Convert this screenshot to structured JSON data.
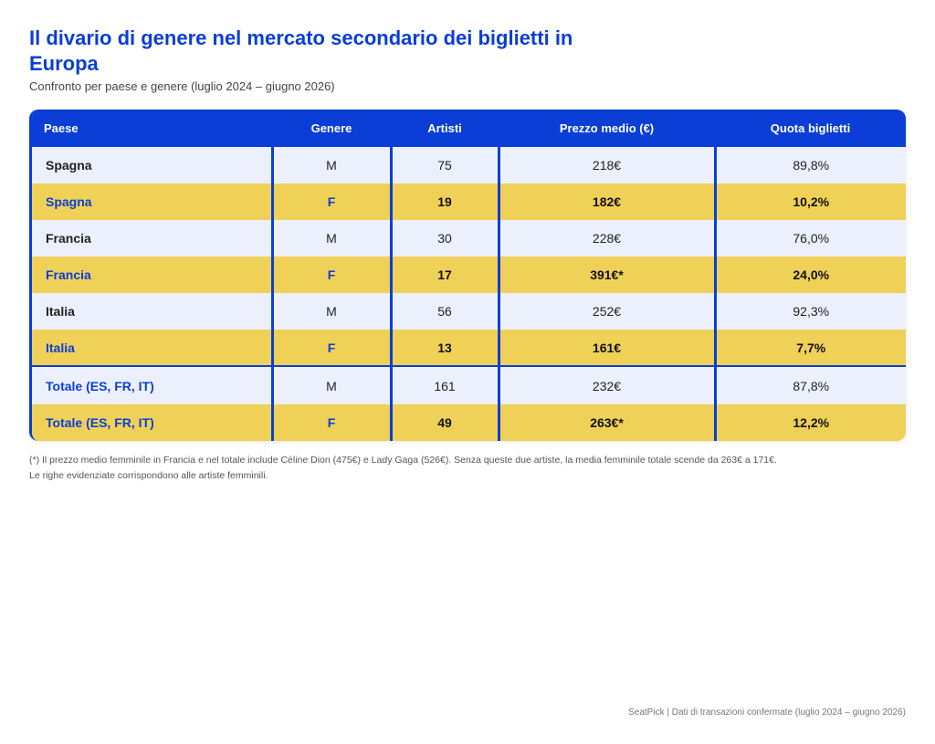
{
  "title": "Il divario di genere nel mercato secondario dei biglietti in Europa",
  "subtitle": "Confronto per paese e genere (luglio 2024 – giugno 2026)",
  "chart_data": {
    "type": "table",
    "columns": [
      "Paese",
      "Genere",
      "Artisti",
      "Prezzo medio (€)",
      "Quota biglietti"
    ],
    "rows": [
      {
        "country": "Spagna",
        "gender": "M",
        "artists": "75",
        "price": "218€",
        "share": "89,8%",
        "kind": "male"
      },
      {
        "country": "Spagna",
        "gender": "F",
        "artists": "19",
        "price": "182€",
        "share": "10,2%",
        "kind": "female"
      },
      {
        "country": "Francia",
        "gender": "M",
        "artists": "30",
        "price": "228€",
        "share": "76,0%",
        "kind": "male"
      },
      {
        "country": "Francia",
        "gender": "F",
        "artists": "17",
        "price": "391€*",
        "share": "24,0%",
        "kind": "female"
      },
      {
        "country": "Italia",
        "gender": "M",
        "artists": "56",
        "price": "252€",
        "share": "92,3%",
        "kind": "male"
      },
      {
        "country": "Italia",
        "gender": "F",
        "artists": "13",
        "price": "161€",
        "share": "7,7%",
        "kind": "female"
      },
      {
        "country": "Totale (ES, FR, IT)",
        "gender": "M",
        "artists": "161",
        "price": "232€",
        "share": "87,8%",
        "kind": "male",
        "total": true
      },
      {
        "country": "Totale (ES, FR, IT)",
        "gender": "F",
        "artists": "49",
        "price": "263€*",
        "share": "12,2%",
        "kind": "female",
        "total": true
      }
    ]
  },
  "footnotes": [
    "(*) Il prezzo medio femminile in Francia e nel totale include Céline Dion (475€) e Lady Gaga (526€). Senza queste due artiste, la media femminile totale scende da 263€ a 171€.",
    "Le righe evidenziate corrispondono alle artiste femminili."
  ],
  "source": "SeatPick | Dati di transazioni confermate (luglio 2024 – giugno 2026)",
  "colors": {
    "accent": "#0a3ed6",
    "highlight": "#f0d158",
    "male_row": "#ecf0fc"
  }
}
